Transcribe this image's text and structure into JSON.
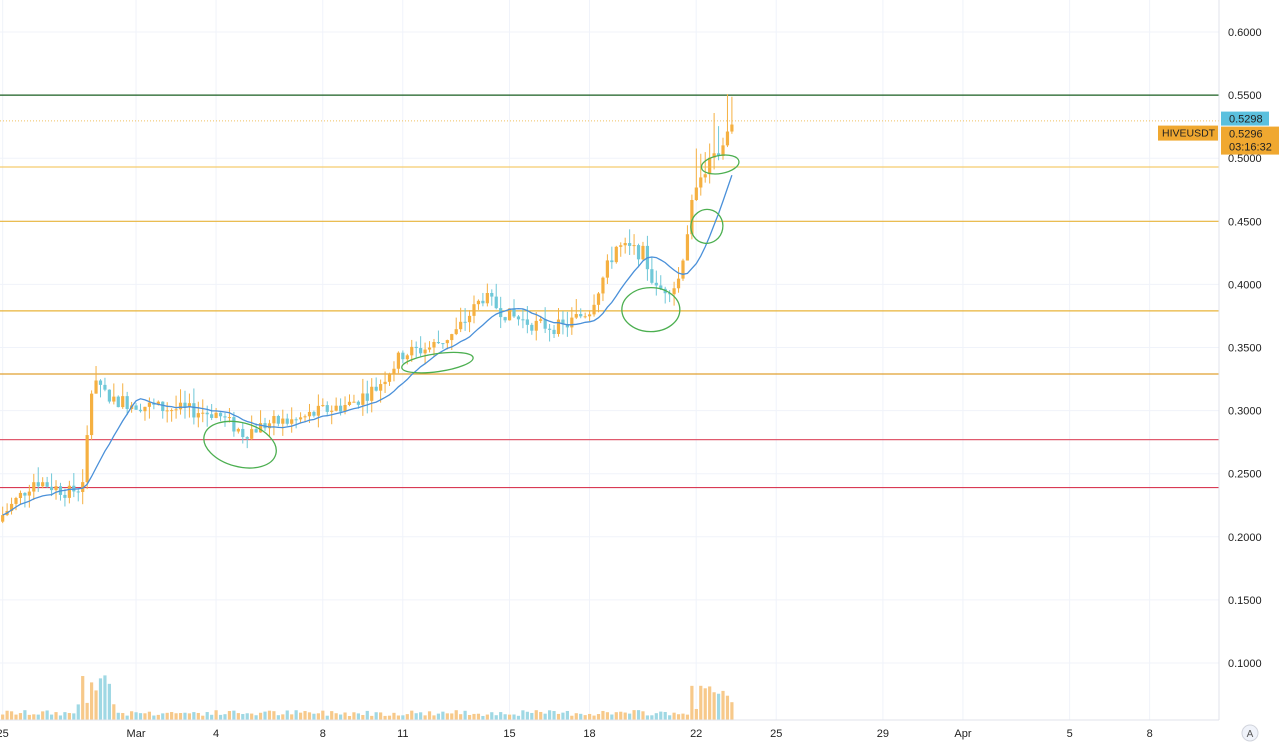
{
  "chart_data": {
    "type": "candlestick",
    "symbol": "HIVEUSDT",
    "y_axis": {
      "ticks": [
        "0.6000",
        "0.5500",
        "0.5000",
        "0.4500",
        "0.4000",
        "0.3500",
        "0.3000",
        "0.2500",
        "0.2000",
        "0.1500",
        "0.1000"
      ],
      "tick_values": [
        0.6,
        0.55,
        0.5,
        0.45,
        0.4,
        0.35,
        0.3,
        0.25,
        0.2,
        0.15,
        0.1
      ],
      "range": [
        0.05,
        0.62
      ]
    },
    "x_axis": {
      "ticks": [
        {
          "label": "25",
          "day": -4
        },
        {
          "label": "Mar",
          "day": 1
        },
        {
          "label": "4",
          "day": 4
        },
        {
          "label": "8",
          "day": 8
        },
        {
          "label": "11",
          "day": 11
        },
        {
          "label": "15",
          "day": 15
        },
        {
          "label": "18",
          "day": 18
        },
        {
          "label": "22",
          "day": 22
        },
        {
          "label": "25",
          "day": 25
        },
        {
          "label": "29",
          "day": 29
        },
        {
          "label": "Apr",
          "day": 32
        },
        {
          "label": "5",
          "day": 36
        },
        {
          "label": "8",
          "day": 39
        }
      ],
      "range": [
        -4.1,
        41.6
      ]
    },
    "price_labels": [
      {
        "text": "0.5298",
        "value": 0.5298,
        "color": "#5bc0de"
      },
      {
        "text": "0.5296",
        "value": 0.5296,
        "color": "#f0a830"
      }
    ],
    "countdown": "03:16:32",
    "horizontal_lines": [
      {
        "value": 0.55,
        "color": "#1b5e20"
      },
      {
        "value": 0.5296,
        "color": "#f0c060",
        "style": "dotted"
      },
      {
        "value": 0.493,
        "color": "#f5cc6e"
      },
      {
        "value": 0.45,
        "color": "#e8b43a"
      },
      {
        "value": 0.379,
        "color": "#e8b43a"
      },
      {
        "value": 0.329,
        "color": "#e0a030"
      },
      {
        "value": 0.277,
        "color": "#e05a6e"
      },
      {
        "value": 0.239,
        "color": "#d93a54"
      }
    ],
    "annotations": [
      {
        "type": "ellipse",
        "day": 4.9,
        "value": 0.273,
        "rx": 37,
        "ry": 22,
        "rotate": 15
      },
      {
        "type": "ellipse",
        "day": 12.3,
        "value": 0.338,
        "rx": 36,
        "ry": 9,
        "rotate": -8
      },
      {
        "type": "ellipse",
        "day": 20.3,
        "value": 0.38,
        "rx": 29,
        "ry": 22,
        "rotate": 0
      },
      {
        "type": "ellipse",
        "day": 22.4,
        "value": 0.446,
        "rx": 16,
        "ry": 17,
        "rotate": 10
      },
      {
        "type": "ellipse",
        "day": 22.9,
        "value": 0.495,
        "rx": 19,
        "ry": 9,
        "rotate": -10
      }
    ],
    "axis_button": "A",
    "colors": {
      "up": "#f5b041",
      "down": "#6fc8d8",
      "ma": "#4a90d9",
      "annotation": "#4caf50",
      "grid": "#f0f3fa",
      "axis_text": "#222222",
      "volume_up": "#f7c98a",
      "volume_down": "#9fd8e4"
    }
  }
}
